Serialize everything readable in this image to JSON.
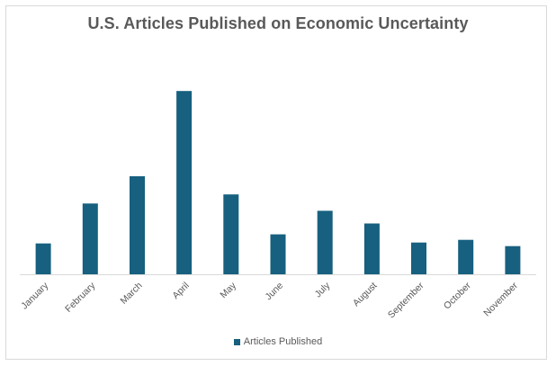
{
  "chart_data": {
    "type": "bar",
    "title": "U.S. Articles Published on Economic Uncertainty",
    "xlabel": "",
    "ylabel": "",
    "categories": [
      "January",
      "February",
      "March",
      "April",
      "May",
      "June",
      "July",
      "August",
      "September",
      "October",
      "November"
    ],
    "series": [
      {
        "name": "Articles Published",
        "color": "#17607f",
        "values": [
          17,
          39,
          54,
          101,
          44,
          22,
          35,
          28,
          17.5,
          19,
          15.5
        ]
      }
    ],
    "ylim": [
      0,
      110
    ],
    "grid": false,
    "legend_position": "bottom"
  }
}
